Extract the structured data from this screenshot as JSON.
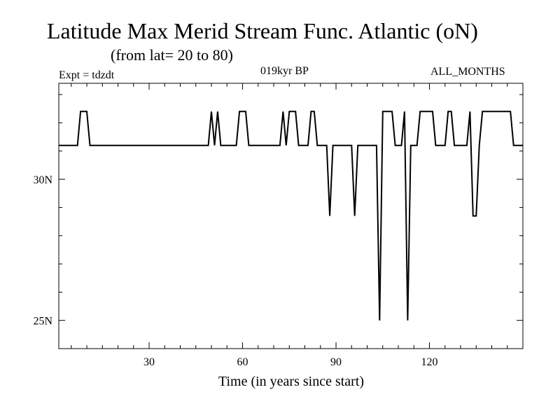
{
  "chart_data": {
    "type": "line",
    "title": "Latitude Max Merid Stream Func. Atlantic (oN)",
    "subtitle": "(from lat= 20 to 80)",
    "annotations": {
      "experiment": "Expt = tdzdt",
      "period": "019kyr BP",
      "months": "ALL_MONTHS"
    },
    "xlabel": "Time (in years since start)",
    "ylabel": "",
    "xlim": [
      1,
      150
    ],
    "ylim": [
      24,
      33.4
    ],
    "x_ticks": [
      30,
      60,
      90,
      120
    ],
    "x_tick_labels": [
      "30",
      "60",
      "90",
      "120"
    ],
    "y_ticks": [
      25,
      30
    ],
    "y_tick_labels": [
      "25N",
      "30N"
    ],
    "grid": false,
    "color": "#000000",
    "series": [
      {
        "x": [
          1,
          7,
          8,
          9,
          10,
          11,
          49,
          50,
          51,
          52,
          53,
          54,
          58,
          59,
          60,
          61,
          62,
          72,
          73,
          74,
          75,
          76,
          77,
          78,
          81,
          82,
          83,
          84,
          85,
          87,
          88,
          89,
          90,
          95,
          96,
          97,
          103,
          104,
          105,
          106,
          107,
          108,
          109,
          111,
          112,
          113,
          114,
          116,
          117,
          118,
          119,
          120,
          121,
          122,
          125,
          126,
          127,
          128,
          129,
          132,
          133,
          134,
          135,
          136,
          137,
          138,
          146,
          147,
          150
        ],
        "y": [
          31.2,
          31.2,
          32.4,
          32.4,
          32.4,
          31.2,
          31.2,
          32.4,
          31.2,
          32.4,
          31.2,
          31.2,
          31.2,
          32.4,
          32.4,
          32.4,
          31.2,
          31.2,
          32.4,
          31.2,
          32.4,
          32.4,
          32.4,
          31.2,
          31.2,
          32.4,
          32.4,
          31.2,
          31.2,
          31.2,
          28.7,
          31.2,
          31.2,
          31.2,
          28.7,
          31.2,
          31.2,
          25.0,
          32.4,
          32.4,
          32.4,
          32.4,
          31.2,
          31.2,
          32.4,
          25.0,
          31.2,
          31.2,
          32.4,
          32.4,
          32.4,
          32.4,
          32.4,
          31.2,
          31.2,
          32.4,
          32.4,
          31.2,
          31.2,
          31.2,
          32.4,
          28.7,
          28.7,
          31.2,
          32.4,
          32.4,
          32.4,
          31.2,
          31.2
        ]
      }
    ]
  }
}
